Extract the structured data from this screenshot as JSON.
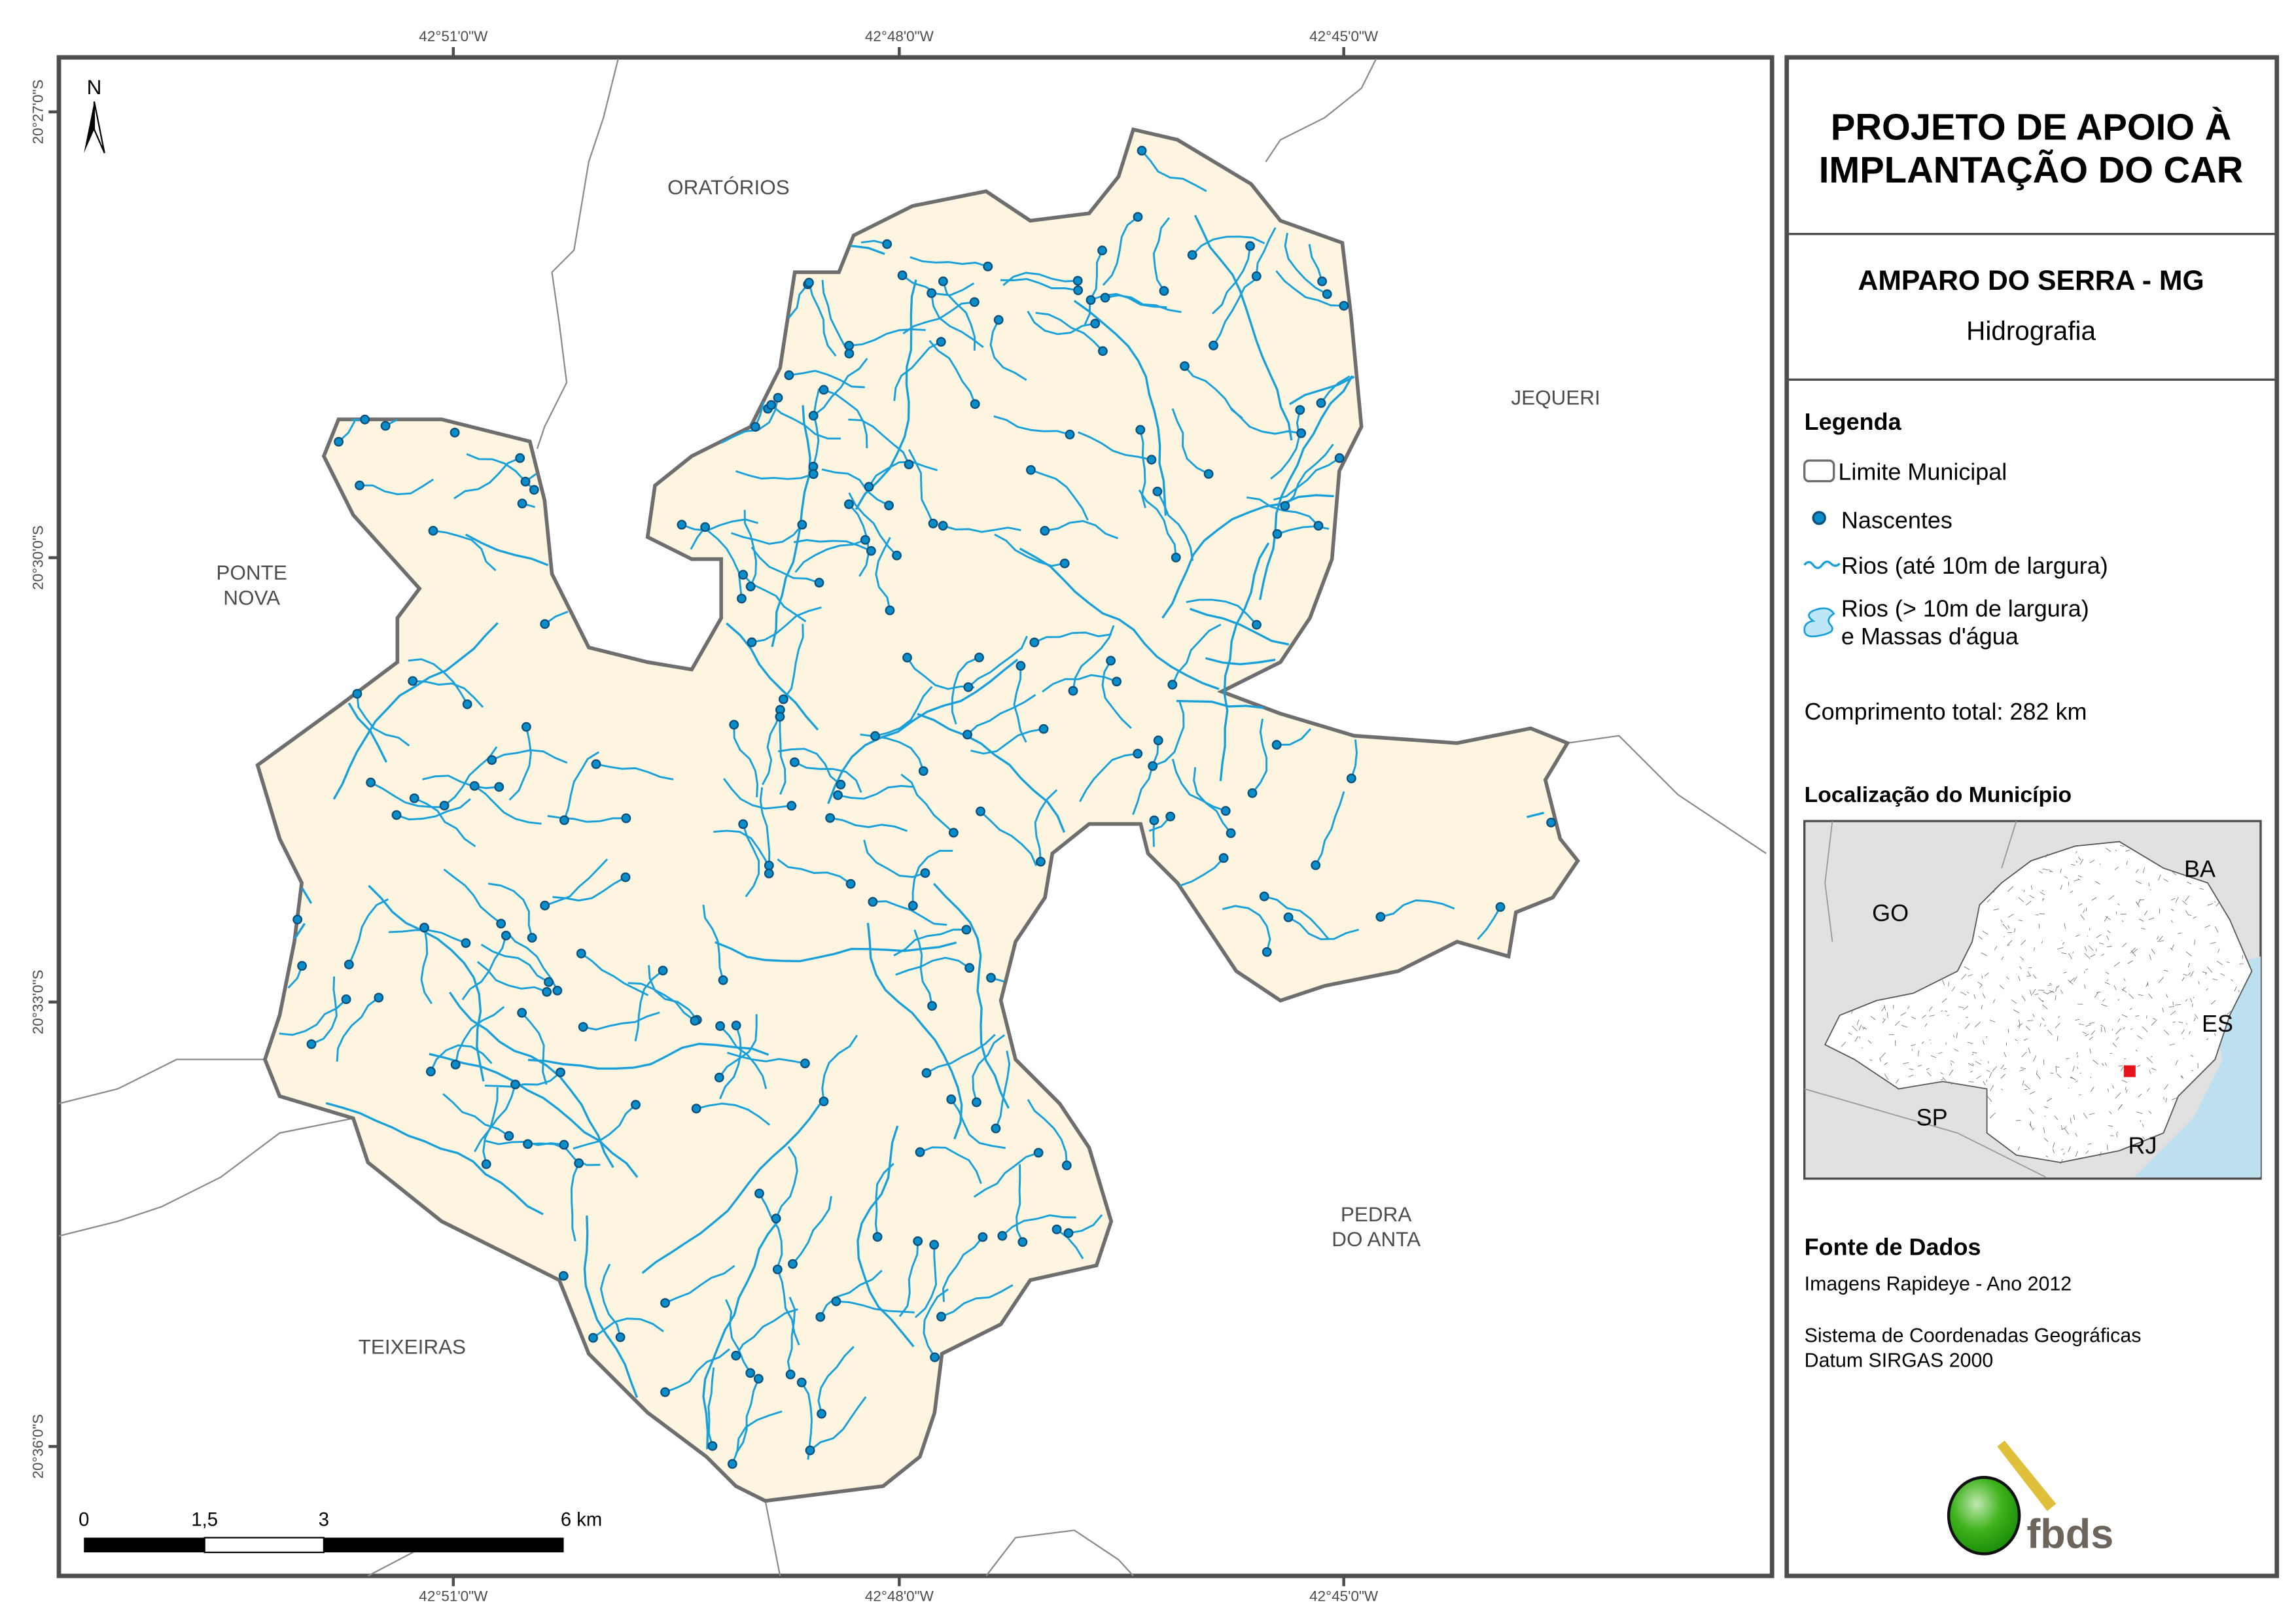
{
  "map": {
    "coord_labels_top": [
      "42°51'0\"W",
      "42°48'0\"W",
      "42°45'0\"W"
    ],
    "coord_labels_bottom": [
      "42°51'0\"W",
      "42°48'0\"W",
      "42°45'0\"W"
    ],
    "coord_labels_left": [
      "20°27'0\"S",
      "20°30'0\"S",
      "20°33'0\"S",
      "20°36'0\"S"
    ],
    "north_label": "N",
    "neighbors": {
      "oratorios": "ORATÓRIOS",
      "jequeri": "JEQUERI",
      "ponte_nova_1": "PONTE",
      "ponte_nova_2": "NOVA",
      "pedra_1": "PEDRA",
      "pedra_2": "DO ANTA",
      "teixeiras": "TEIXEIRAS"
    },
    "scale_labels": [
      "0",
      "1,5",
      "3",
      "6 km"
    ],
    "colors": {
      "municipality_fill": "#fdf5e0",
      "river": "#1aa0d8",
      "spring": "#0a8ecb",
      "boundary": "#6e6e6e"
    }
  },
  "panel": {
    "title_1": "PROJETO DE APOIO À",
    "title_2": "IMPLANTAÇÃO DO CAR",
    "municipality": "AMPARO DO SERRA - MG",
    "theme": "Hidrografia",
    "legend_title": "Legenda",
    "legend": {
      "limit": "Limite Municipal",
      "springs": "Nascentes",
      "rivers_small": "Rios (até 10m de largura)",
      "rivers_large_1": "Rios (> 10m de largura)",
      "rivers_large_2": "e Massas d'água"
    },
    "total_length": "Comprimento total:  282 km",
    "location_title": "Localização do Município",
    "location_labels": {
      "ba": "BA",
      "go": "GO",
      "es": "ES",
      "sp": "SP",
      "rj": "RJ"
    },
    "source_title": "Fonte de Dados",
    "source_1": "Imagens Rapideye - Ano 2012",
    "source_2": "Sistema de Coordenadas Geográficas",
    "source_3": "Datum SIRGAS 2000",
    "logo_text": "fbds"
  }
}
